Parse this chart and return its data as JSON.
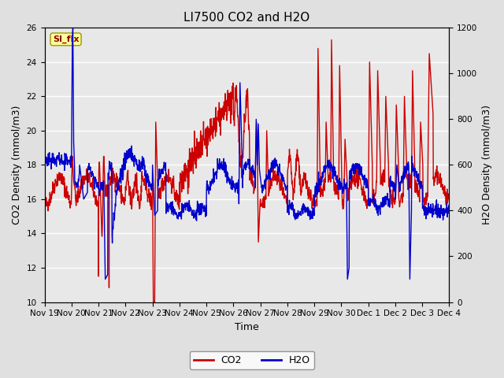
{
  "title": "LI7500 CO2 and H2O",
  "xlabel": "Time",
  "ylabel_left": "CO2 Density (mmol/m3)",
  "ylabel_right": "H2O Density (mmol/m3)",
  "ylim_left": [
    10,
    26
  ],
  "ylim_right": [
    0,
    1200
  ],
  "yticks_left": [
    10,
    12,
    14,
    16,
    18,
    20,
    22,
    24,
    26
  ],
  "yticks_right": [
    0,
    200,
    400,
    600,
    800,
    1000,
    1200
  ],
  "xtick_labels": [
    "Nov 19",
    "Nov 20",
    "Nov 21",
    "Nov 22",
    "Nov 23",
    "Nov 24",
    "Nov 25",
    "Nov 26",
    "Nov 27",
    "Nov 28",
    "Nov 29",
    "Nov 30",
    "Dec 1",
    "Dec 2",
    "Dec 3",
    "Dec 4"
  ],
  "annotation_text": "SI_flx",
  "annotation_bbox_facecolor": "#FFFF99",
  "annotation_bbox_edgecolor": "#999900",
  "annotation_text_color": "#8B0000",
  "co2_color": "#cc0000",
  "h2o_color": "#0000cc",
  "legend_co2": "CO2",
  "legend_h2o": "H2O",
  "bg_color": "#e0e0e0",
  "plot_bg_color": "#e8e8e8",
  "grid_color": "#ffffff",
  "title_fontsize": 11,
  "axis_label_fontsize": 9,
  "tick_fontsize": 7.5,
  "legend_fontsize": 9,
  "line_width": 1.0,
  "n_points": 1500,
  "seed": 42
}
